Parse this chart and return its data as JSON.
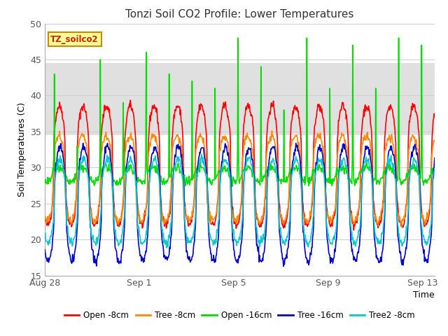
{
  "title": "Tonzi Soil CO2 Profile: Lower Temperatures",
  "xlabel": "Time",
  "ylabel": "Soil Temperatures (C)",
  "ylim": [
    15,
    50
  ],
  "xlim_days": 16.5,
  "background_color": "#ffffff",
  "plot_bg_color": "#ffffff",
  "shaded_band": [
    34.5,
    44.5
  ],
  "series": [
    {
      "label": "Open -8cm",
      "color": "#ff0000"
    },
    {
      "label": "Tree -8cm",
      "color": "#ff8800"
    },
    {
      "label": "Open -16cm",
      "color": "#00dd00"
    },
    {
      "label": "Tree -16cm",
      "color": "#0000cc"
    },
    {
      "label": "Tree2 -8cm",
      "color": "#00cccc"
    }
  ],
  "xtick_labels": [
    "Aug 28",
    "Sep 1",
    "Sep 5",
    "Sep 9",
    "Sep 13"
  ],
  "xtick_positions": [
    0,
    4,
    8,
    12,
    16
  ],
  "watermark_text": "TZ_soilco2",
  "watermark_color": "#cc2200",
  "watermark_bg": "#ffff99",
  "watermark_border": "#cc8800",
  "num_cycles": 17,
  "seed": 42,
  "grid_color": "#d0d0d0",
  "spine_color": "#aaaaaa"
}
